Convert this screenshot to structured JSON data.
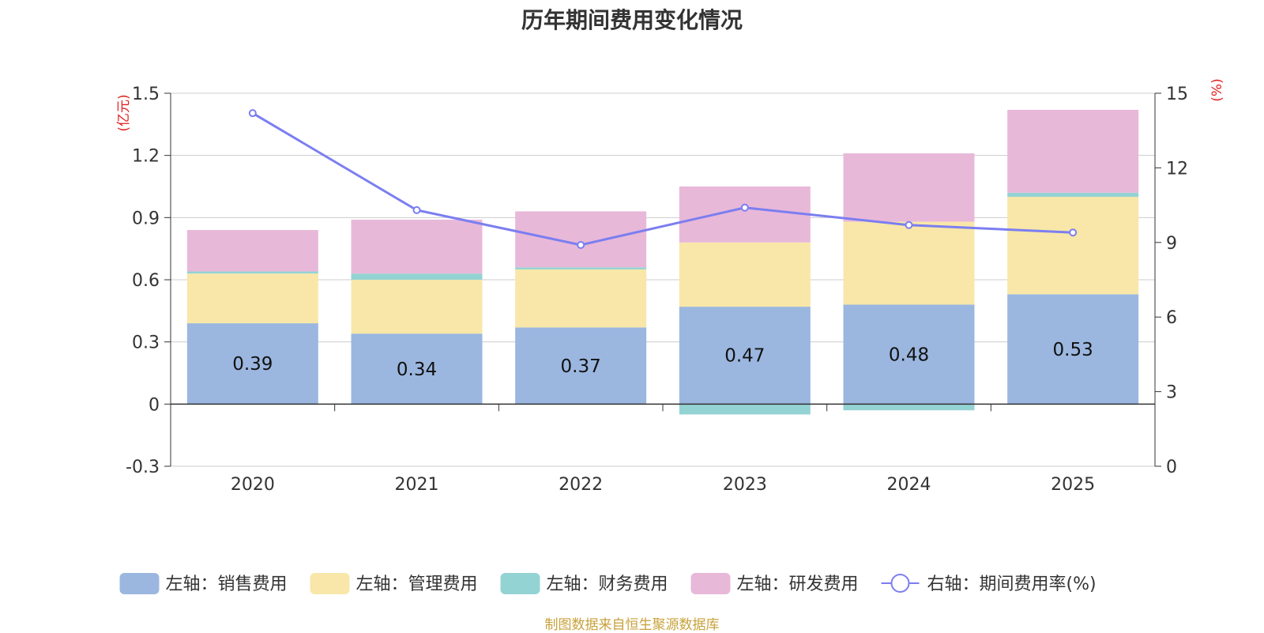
{
  "chart_data": {
    "type": "bar",
    "title": "历年期间费用变化情况",
    "categories": [
      "2020",
      "2021",
      "2022",
      "2023",
      "2024",
      "2025"
    ],
    "left_axis": {
      "unit_label": "(亿元)",
      "range": [
        -0.3,
        1.5
      ],
      "ticks": [
        "1.5",
        "1.2",
        "0.9",
        "0.6",
        "0.3",
        "0",
        "-0.3"
      ]
    },
    "right_axis": {
      "unit_label": "(%)",
      "range": [
        0,
        15
      ],
      "ticks": [
        "15",
        "12",
        "9",
        "6",
        "3",
        "0"
      ]
    },
    "series": [
      {
        "name": "左轴：销售费用",
        "type": "bar",
        "stack": true,
        "color": "#9bb7e0",
        "values": [
          0.39,
          0.34,
          0.37,
          0.47,
          0.48,
          0.53
        ],
        "labels": [
          "0.39",
          "0.34",
          "0.37",
          "0.47",
          "0.48",
          "0.53"
        ]
      },
      {
        "name": "左轴：管理费用",
        "type": "bar",
        "stack": true,
        "color": "#f8e7a8",
        "values": [
          0.24,
          0.26,
          0.28,
          0.31,
          0.4,
          0.47
        ]
      },
      {
        "name": "左轴：财务费用",
        "type": "bar",
        "stack": true,
        "color": "#94d3d3",
        "values": [
          0.01,
          0.03,
          0.01,
          -0.05,
          -0.03,
          0.02
        ]
      },
      {
        "name": "左轴：研发费用",
        "type": "bar",
        "stack": true,
        "color": "#e8b8d9",
        "values": [
          0.2,
          0.26,
          0.27,
          0.27,
          0.33,
          0.4
        ]
      },
      {
        "name": "右轴：期间费用率(%)",
        "type": "line",
        "axis": "right",
        "color": "#7b7ef0",
        "values": [
          14.2,
          10.3,
          8.9,
          10.4,
          9.7,
          9.4
        ]
      }
    ],
    "source": "制图数据来自恒生聚源数据库"
  }
}
